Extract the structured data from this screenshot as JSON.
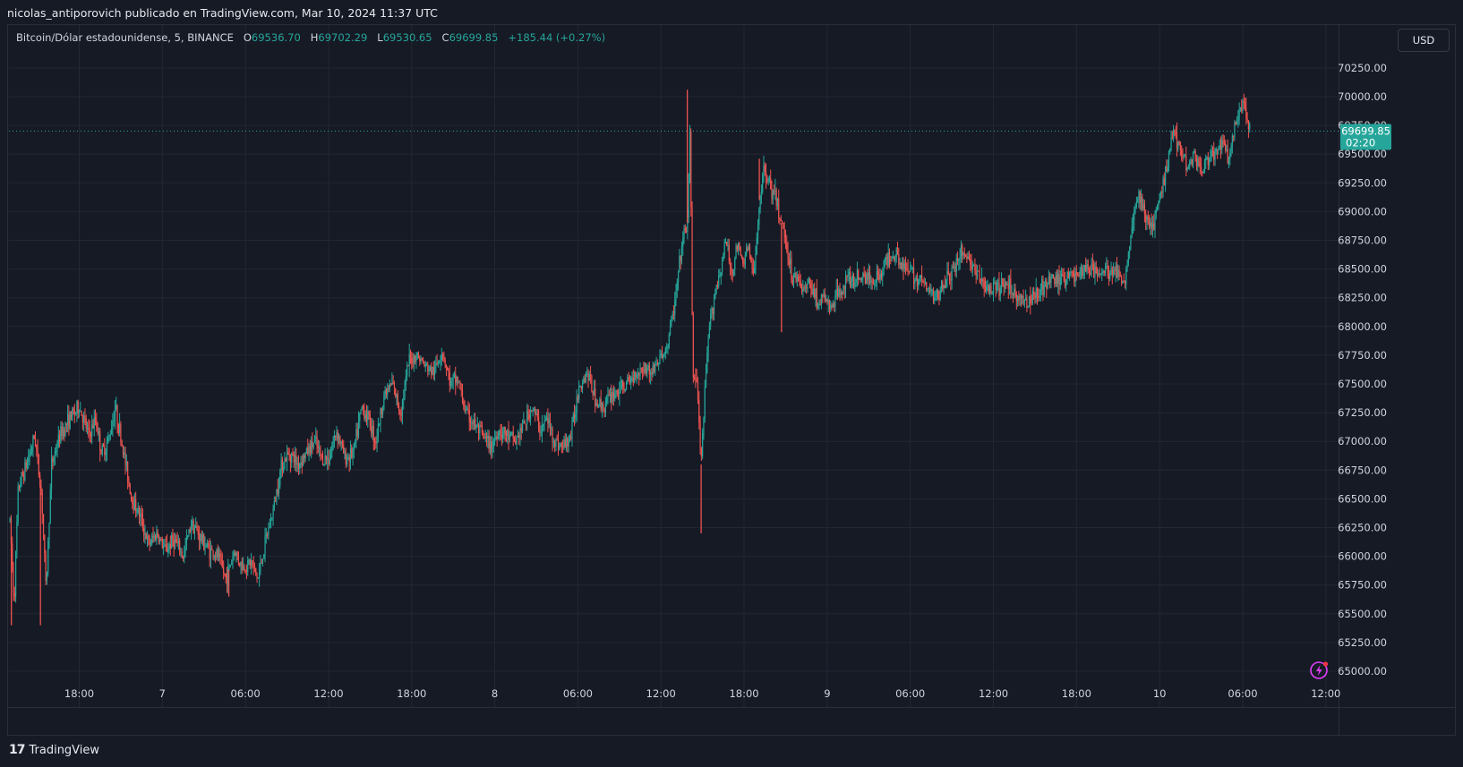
{
  "attribution": "nicolas_antiporovich publicado en TradingView.com, Mar 10, 2024 11:37 UTC",
  "legend": {
    "symbol": "Bitcoin/Dólar estadounidense, 5, BINANCE",
    "open_label": "O",
    "open": "69536.70",
    "high_label": "H",
    "high": "69702.29",
    "low_label": "L",
    "low": "69530.65",
    "close_label": "C",
    "close": "69699.85",
    "change": "+185.44 (+0.27%)"
  },
  "currency": "USD",
  "last_price": {
    "price": "69699.85",
    "countdown": "02:20"
  },
  "footer": {
    "logo_mark": "17",
    "logo_text": "TradingView"
  },
  "colors": {
    "background": "#161a25",
    "up": "#26a69a",
    "down": "#ef5350",
    "grid": "#232733",
    "axis_text": "#d1d4dc",
    "accent_icon": "#e040fb"
  },
  "icons": {
    "alert": "lightning-alert-icon"
  },
  "chart_data": {
    "type": "candlestick",
    "title": "Bitcoin/Dólar estadounidense, 5, BINANCE",
    "interval": "5m",
    "grid": true,
    "ylim": [
      64900,
      70400
    ],
    "y_ticks": [
      "70250.00",
      "70000.00",
      "69750.00",
      "69500.00",
      "69250.00",
      "69000.00",
      "68750.00",
      "68500.00",
      "68250.00",
      "68000.00",
      "67750.00",
      "67500.00",
      "67250.00",
      "67000.00",
      "66750.00",
      "66500.00",
      "66250.00",
      "66000.00",
      "65750.00",
      "65500.00",
      "65250.00",
      "65000.00"
    ],
    "x_ticks": [
      {
        "label": "18:00",
        "hour": 18
      },
      {
        "label": "7",
        "hour": 24
      },
      {
        "label": "06:00",
        "hour": 30
      },
      {
        "label": "12:00",
        "hour": 36
      },
      {
        "label": "18:00",
        "hour": 42
      },
      {
        "label": "8",
        "hour": 48
      },
      {
        "label": "06:00",
        "hour": 54
      },
      {
        "label": "12:00",
        "hour": 60
      },
      {
        "label": "18:00",
        "hour": 66
      },
      {
        "label": "9",
        "hour": 72
      },
      {
        "label": "06:00",
        "hour": 78
      },
      {
        "label": "12:00",
        "hour": 84
      },
      {
        "label": "18:00",
        "hour": 90
      },
      {
        "label": "10",
        "hour": 96
      },
      {
        "label": "06:00",
        "hour": 102
      },
      {
        "label": "12:00",
        "hour": 108
      }
    ],
    "x_unit": "hours since Mar 6 00:00 UTC",
    "price_path": [
      [
        13.0,
        66300
      ],
      [
        13.3,
        65600
      ],
      [
        13.6,
        66600
      ],
      [
        14.2,
        66800
      ],
      [
        14.8,
        67050
      ],
      [
        15.3,
        66500
      ],
      [
        15.6,
        65700
      ],
      [
        16.0,
        66800
      ],
      [
        16.6,
        67050
      ],
      [
        17.3,
        67200
      ],
      [
        18.0,
        67300
      ],
      [
        18.7,
        67050
      ],
      [
        19.2,
        67200
      ],
      [
        19.6,
        66900
      ],
      [
        20.1,
        67000
      ],
      [
        20.6,
        67300
      ],
      [
        21.2,
        66900
      ],
      [
        21.8,
        66500
      ],
      [
        22.4,
        66350
      ],
      [
        23.0,
        66100
      ],
      [
        23.6,
        66200
      ],
      [
        24.2,
        66050
      ],
      [
        24.8,
        66150
      ],
      [
        25.5,
        66000
      ],
      [
        26.1,
        66300
      ],
      [
        26.8,
        66150
      ],
      [
        27.4,
        66050
      ],
      [
        28.0,
        66000
      ],
      [
        28.6,
        65800
      ],
      [
        29.2,
        66050
      ],
      [
        29.8,
        65900
      ],
      [
        30.4,
        65950
      ],
      [
        30.9,
        65800
      ],
      [
        31.4,
        66100
      ],
      [
        32.0,
        66400
      ],
      [
        32.6,
        66800
      ],
      [
        33.2,
        66900
      ],
      [
        33.8,
        66800
      ],
      [
        34.4,
        66900
      ],
      [
        35.0,
        67000
      ],
      [
        35.5,
        66850
      ],
      [
        36.0,
        66850
      ],
      [
        36.6,
        67100
      ],
      [
        37.2,
        66850
      ],
      [
        37.8,
        66900
      ],
      [
        38.4,
        67300
      ],
      [
        38.9,
        67200
      ],
      [
        39.4,
        67000
      ],
      [
        40.0,
        67400
      ],
      [
        40.6,
        67500
      ],
      [
        41.2,
        67250
      ],
      [
        41.8,
        67700
      ],
      [
        42.4,
        67750
      ],
      [
        43.0,
        67650
      ],
      [
        43.6,
        67600
      ],
      [
        44.2,
        67800
      ],
      [
        44.8,
        67500
      ],
      [
        45.3,
        67550
      ],
      [
        45.9,
        67250
      ],
      [
        46.5,
        67150
      ],
      [
        47.1,
        67050
      ],
      [
        47.7,
        66950
      ],
      [
        48.3,
        67100
      ],
      [
        48.9,
        67050
      ],
      [
        49.5,
        67000
      ],
      [
        50.1,
        67150
      ],
      [
        50.7,
        67300
      ],
      [
        51.3,
        67100
      ],
      [
        51.8,
        67200
      ],
      [
        52.3,
        67000
      ],
      [
        52.9,
        66950
      ],
      [
        53.5,
        67050
      ],
      [
        54.1,
        67500
      ],
      [
        54.7,
        67600
      ],
      [
        55.3,
        67350
      ],
      [
        55.8,
        67300
      ],
      [
        56.4,
        67400
      ],
      [
        57.0,
        67450
      ],
      [
        57.6,
        67500
      ],
      [
        58.2,
        67600
      ],
      [
        58.8,
        67650
      ],
      [
        59.3,
        67600
      ],
      [
        59.8,
        67700
      ],
      [
        60.4,
        67800
      ],
      [
        61.0,
        68200
      ],
      [
        61.5,
        68700
      ],
      [
        61.9,
        68900
      ],
      [
        62.1,
        69700
      ],
      [
        62.3,
        67600
      ],
      [
        62.6,
        67500
      ],
      [
        62.9,
        66800
      ],
      [
        63.2,
        67500
      ],
      [
        63.5,
        68000
      ],
      [
        63.9,
        68300
      ],
      [
        64.3,
        68500
      ],
      [
        64.7,
        68750
      ],
      [
        65.1,
        68450
      ],
      [
        65.5,
        68700
      ],
      [
        65.9,
        68550
      ],
      [
        66.3,
        68700
      ],
      [
        66.7,
        68400
      ],
      [
        67.1,
        69100
      ],
      [
        67.5,
        69400
      ],
      [
        67.9,
        69200
      ],
      [
        68.3,
        69100
      ],
      [
        68.7,
        68900
      ],
      [
        69.1,
        68700
      ],
      [
        69.5,
        68400
      ],
      [
        69.9,
        68450
      ],
      [
        70.3,
        68300
      ],
      [
        70.8,
        68400
      ],
      [
        71.3,
        68200
      ],
      [
        71.8,
        68250
      ],
      [
        72.3,
        68150
      ],
      [
        72.8,
        68300
      ],
      [
        73.4,
        68400
      ],
      [
        74.0,
        68400
      ],
      [
        74.6,
        68450
      ],
      [
        75.2,
        68400
      ],
      [
        75.8,
        68450
      ],
      [
        76.4,
        68600
      ],
      [
        77.0,
        68650
      ],
      [
        77.6,
        68500
      ],
      [
        78.2,
        68450
      ],
      [
        78.8,
        68400
      ],
      [
        79.4,
        68300
      ],
      [
        79.9,
        68250
      ],
      [
        80.4,
        68400
      ],
      [
        81.0,
        68450
      ],
      [
        81.6,
        68650
      ],
      [
        82.2,
        68600
      ],
      [
        82.8,
        68450
      ],
      [
        83.4,
        68350
      ],
      [
        84.0,
        68300
      ],
      [
        84.6,
        68350
      ],
      [
        85.2,
        68350
      ],
      [
        85.8,
        68250
      ],
      [
        86.4,
        68200
      ],
      [
        87.0,
        68300
      ],
      [
        87.6,
        68350
      ],
      [
        88.2,
        68400
      ],
      [
        88.8,
        68400
      ],
      [
        89.4,
        68450
      ],
      [
        90.0,
        68450
      ],
      [
        90.6,
        68500
      ],
      [
        91.2,
        68500
      ],
      [
        91.8,
        68450
      ],
      [
        92.4,
        68500
      ],
      [
        93.0,
        68450
      ],
      [
        93.5,
        68400
      ],
      [
        94.0,
        68900
      ],
      [
        94.5,
        69150
      ],
      [
        95.0,
        68950
      ],
      [
        95.5,
        68850
      ],
      [
        96.0,
        69100
      ],
      [
        96.5,
        69400
      ],
      [
        97.0,
        69700
      ],
      [
        97.5,
        69550
      ],
      [
        98.0,
        69400
      ],
      [
        98.5,
        69500
      ],
      [
        99.0,
        69350
      ],
      [
        99.5,
        69450
      ],
      [
        100.0,
        69500
      ],
      [
        100.5,
        69600
      ],
      [
        101.0,
        69450
      ],
      [
        101.5,
        69750
      ],
      [
        102.0,
        69950
      ],
      [
        102.5,
        69700
      ]
    ],
    "notable_wicks": [
      {
        "hour": 61.9,
        "value": 70060
      },
      {
        "hour": 62.9,
        "value": 66200
      },
      {
        "hour": 13.1,
        "value": 65400
      },
      {
        "hour": 15.2,
        "value": 65400
      },
      {
        "hour": 28.8,
        "value": 65650
      },
      {
        "hour": 67.1,
        "value": 69460
      },
      {
        "hour": 68.7,
        "value": 67950
      }
    ],
    "last_close": 69699.85
  }
}
